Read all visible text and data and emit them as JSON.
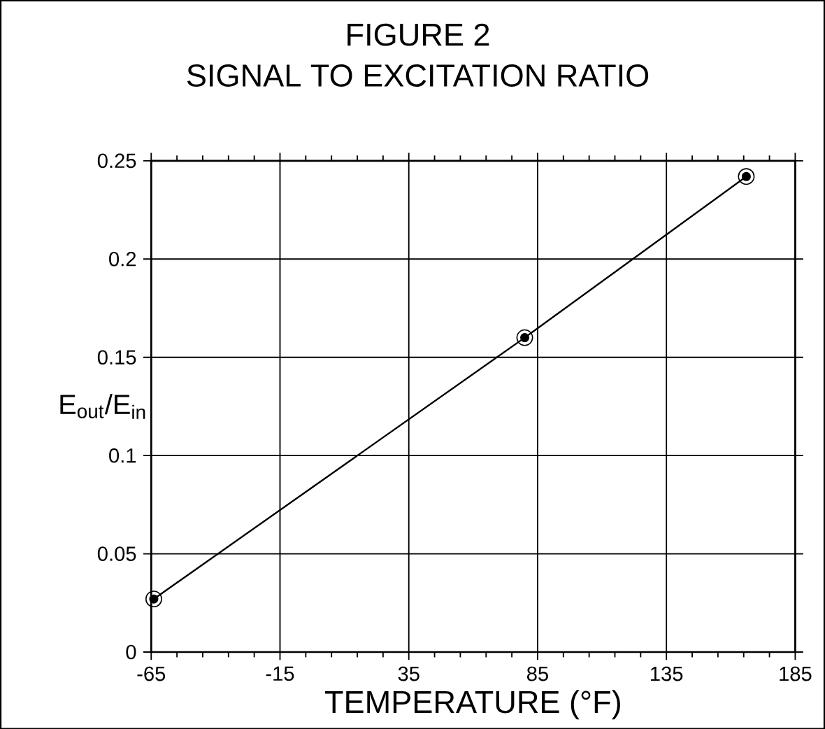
{
  "chart_data": {
    "type": "line",
    "title": "FIGURE 2",
    "subtitle": "SIGNAL TO EXCITATION RATIO",
    "xlabel": "TEMPERATURE (°F)",
    "ylabel": "E$_{out}$/E$_{in}$",
    "x": [
      -64,
      80,
      166
    ],
    "series": [
      {
        "color": "#000000",
        "values": [
          0.027,
          0.16,
          0.242
        ]
      }
    ],
    "xlim": [
      -65,
      185
    ],
    "xticks": [
      -65,
      -15,
      35,
      85,
      135,
      185
    ],
    "ylim": [
      0,
      0.25
    ],
    "yticks": [
      0,
      0.05,
      0.1,
      0.15,
      0.2,
      0.25
    ],
    "grid": true,
    "marker": "circle",
    "line_style": "solid"
  }
}
